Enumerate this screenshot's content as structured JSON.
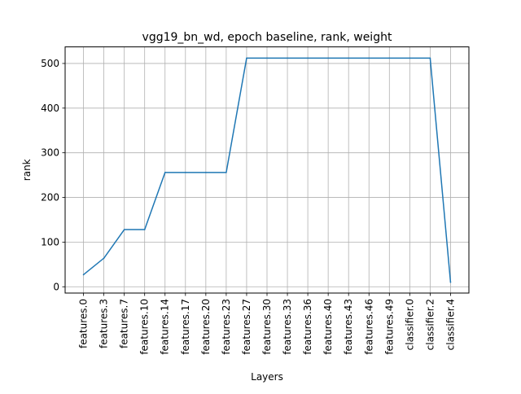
{
  "chart_data": {
    "type": "line",
    "title": "vgg19_bn_wd, epoch baseline, rank, weight",
    "xlabel": "Layers",
    "ylabel": "rank",
    "categories": [
      "features.0",
      "features.3",
      "features.7",
      "features.10",
      "features.14",
      "features.17",
      "features.20",
      "features.23",
      "features.27",
      "features.30",
      "features.33",
      "features.36",
      "features.40",
      "features.43",
      "features.46",
      "features.49",
      "classifier.0",
      "classifier.2",
      "classifier.4"
    ],
    "series": [
      {
        "values": [
          27,
          64,
          128,
          128,
          256,
          256,
          256,
          256,
          512,
          512,
          512,
          512,
          512,
          512,
          512,
          512,
          512,
          512,
          10
        ],
        "color": "#1f77b4"
      }
    ],
    "yticks": [
      0,
      100,
      200,
      300,
      400,
      500
    ],
    "ylim": [
      -14.1,
      537.1
    ],
    "grid": true
  }
}
